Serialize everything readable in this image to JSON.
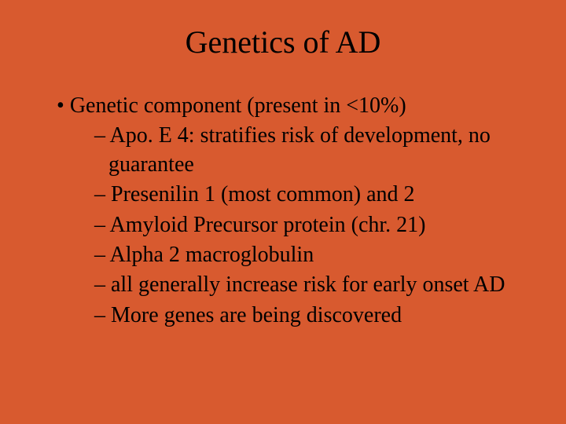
{
  "background_color": "#d85a2f",
  "text_color": "#000000",
  "font_family": "Times New Roman",
  "title": {
    "text": "Genetics of AD",
    "fontsize": 40,
    "align": "center"
  },
  "body_fontsize": 28,
  "bullets": [
    {
      "level": 1,
      "text": "Genetic component (present in <10%)"
    },
    {
      "level": 2,
      "text": "Apo. E 4: stratifies risk of development, no guarantee"
    },
    {
      "level": 2,
      "text": "Presenilin 1 (most common) and 2"
    },
    {
      "level": 2,
      "text": "Amyloid Precursor protein (chr. 21)"
    },
    {
      "level": 2,
      "text": "Alpha 2 macroglobulin"
    },
    {
      "level": 2,
      "text": "all generally increase risk for early onset AD"
    },
    {
      "level": 2,
      "text": "More genes are being discovered"
    }
  ]
}
